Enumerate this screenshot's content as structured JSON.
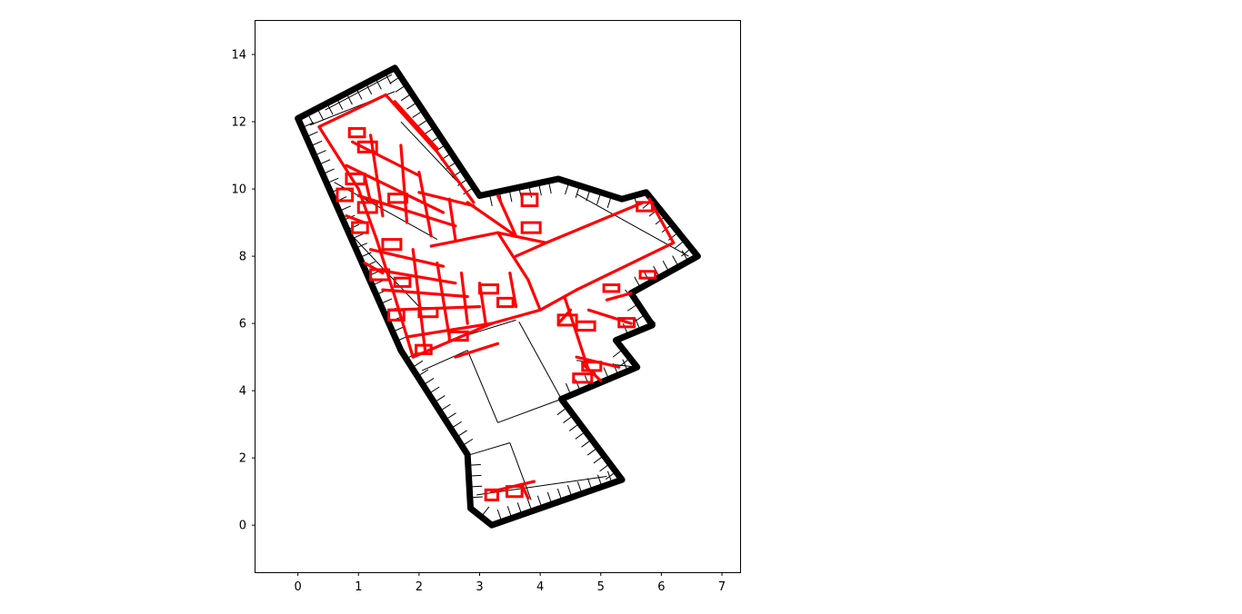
{
  "chart_data": {
    "type": "line",
    "title": "",
    "xlabel": "",
    "ylabel": "",
    "xlim": [
      -0.7,
      7.3
    ],
    "ylim": [
      -1.4,
      15.0
    ],
    "x_ticks": [
      0,
      1,
      2,
      3,
      4,
      5,
      6,
      7
    ],
    "y_ticks": [
      0,
      2,
      4,
      6,
      8,
      10,
      12,
      14
    ],
    "grid": false,
    "colors": {
      "boundary": "#000000",
      "parcels": "#000000",
      "roads": "#ff0000"
    },
    "series": [
      {
        "role": "boundary",
        "points": [
          [
            0,
            12.1
          ],
          [
            1.6,
            13.6
          ],
          [
            3,
            9.8
          ],
          [
            4.3,
            10.3
          ],
          [
            5.35,
            9.7
          ],
          [
            5.75,
            9.9
          ],
          [
            6.6,
            8
          ],
          [
            5.5,
            6.9
          ],
          [
            5.85,
            5.95
          ],
          [
            5.25,
            5.5
          ],
          [
            5.6,
            4.7
          ],
          [
            4.35,
            3.75
          ],
          [
            5.35,
            1.35
          ],
          [
            3.2,
            0
          ],
          [
            2.85,
            0.5
          ],
          [
            2.8,
            2.1
          ],
          [
            1.7,
            5.2
          ],
          [
            0,
            12.1
          ]
        ]
      },
      {
        "role": "parcel-lines",
        "segments": [
          [
            [
              2.05,
              4.6
            ],
            [
              2.8,
              5.2
            ]
          ],
          [
            [
              2.8,
              5.2
            ],
            [
              3.3,
              3.05
            ]
          ],
          [
            [
              3.3,
              3.05
            ],
            [
              4.35,
              3.75
            ]
          ],
          [
            [
              3.65,
              6.05
            ],
            [
              4.35,
              3.75
            ]
          ],
          [
            [
              2.85,
              2.1
            ],
            [
              3.5,
              2.45
            ]
          ],
          [
            [
              3.5,
              2.45
            ],
            [
              3.85,
              0.75
            ]
          ],
          [
            [
              2.95,
              0.9
            ],
            [
              5.1,
              1.45
            ]
          ],
          [
            [
              4.35,
              3.75
            ],
            [
              5.35,
              1.35
            ]
          ],
          [
            [
              0.45,
              12.35
            ],
            [
              1.55,
              13.4
            ]
          ],
          [
            [
              0.2,
              11.9
            ],
            [
              1.6,
              12.9
            ]
          ],
          [
            [
              1.7,
              12.0
            ],
            [
              2.8,
              9.9
            ]
          ],
          [
            [
              0.6,
              10.2
            ],
            [
              2.3,
              8.5
            ]
          ],
          [
            [
              0.9,
              8.6
            ],
            [
              2.0,
              6.5
            ]
          ],
          [
            [
              2.7,
              5.6
            ],
            [
              3.6,
              6.1
            ]
          ],
          [
            [
              4.6,
              9.85
            ],
            [
              6.45,
              8.0
            ]
          ],
          [
            [
              5.4,
              7.0
            ],
            [
              5.9,
              6.0
            ]
          ],
          [
            [
              4.6,
              4.9
            ],
            [
              5.6,
              4.7
            ]
          ]
        ]
      },
      {
        "role": "road-network",
        "segments": [
          [
            [
              0.35,
              11.85
            ],
            [
              1.45,
              12.8
            ]
          ],
          [
            [
              1.45,
              12.8
            ],
            [
              2.3,
              11.1
            ]
          ],
          [
            [
              2.3,
              11.1
            ],
            [
              2.9,
              9.6
            ]
          ],
          [
            [
              0.35,
              11.85
            ],
            [
              1.0,
              10.0
            ]
          ],
          [
            [
              1.0,
              10.0
            ],
            [
              1.3,
              8.5
            ]
          ],
          [
            [
              1.3,
              8.5
            ],
            [
              1.6,
              6.8
            ]
          ],
          [
            [
              1.6,
              6.8
            ],
            [
              1.9,
              5.0
            ]
          ],
          [
            [
              1.9,
              5.0
            ],
            [
              3.2,
              6.0
            ]
          ],
          [
            [
              3.2,
              6.0
            ],
            [
              4.0,
              6.4
            ]
          ],
          [
            [
              4.0,
              6.4
            ],
            [
              4.6,
              7.0
            ]
          ],
          [
            [
              4.6,
              7.0
            ],
            [
              6.2,
              8.4
            ]
          ],
          [
            [
              6.2,
              8.4
            ],
            [
              5.8,
              9.7
            ]
          ],
          [
            [
              4.1,
              8.4
            ],
            [
              5.7,
              9.6
            ]
          ],
          [
            [
              2.2,
              8.3
            ],
            [
              3.3,
              8.7
            ]
          ],
          [
            [
              3.3,
              8.7
            ],
            [
              4.1,
              8.4
            ]
          ],
          [
            [
              3.3,
              8.7
            ],
            [
              3.8,
              7.3
            ]
          ],
          [
            [
              3.8,
              7.3
            ],
            [
              4.0,
              6.4
            ]
          ],
          [
            [
              2.8,
              9.6
            ],
            [
              3.6,
              8.6
            ]
          ],
          [
            [
              0.9,
              11.4
            ],
            [
              2.0,
              10.4
            ]
          ],
          [
            [
              0.8,
              10.7
            ],
            [
              2.4,
              9.3
            ]
          ],
          [
            [
              1.0,
              9.8
            ],
            [
              2.6,
              8.9
            ]
          ],
          [
            [
              1.2,
              8.2
            ],
            [
              2.4,
              7.7
            ]
          ],
          [
            [
              1.3,
              7.6
            ],
            [
              2.6,
              7.2
            ]
          ],
          [
            [
              1.4,
              7.0
            ],
            [
              2.8,
              6.8
            ]
          ],
          [
            [
              1.5,
              6.4
            ],
            [
              3.0,
              6.5
            ]
          ],
          [
            [
              1.8,
              5.6
            ],
            [
              3.2,
              6.0
            ]
          ],
          [
            [
              1.2,
              11.6
            ],
            [
              1.4,
              9.2
            ]
          ],
          [
            [
              1.7,
              11.3
            ],
            [
              1.8,
              9.0
            ]
          ],
          [
            [
              2.0,
              10.5
            ],
            [
              2.2,
              8.6
            ]
          ],
          [
            [
              2.5,
              9.7
            ],
            [
              2.6,
              8.5
            ]
          ],
          [
            [
              1.9,
              8.2
            ],
            [
              2.1,
              5.2
            ]
          ],
          [
            [
              2.3,
              7.8
            ],
            [
              2.5,
              5.6
            ]
          ],
          [
            [
              2.7,
              7.5
            ],
            [
              2.8,
              6.0
            ]
          ],
          [
            [
              3.0,
              7.2
            ],
            [
              3.1,
              6.0
            ]
          ],
          [
            [
              3.5,
              7.5
            ],
            [
              3.6,
              6.5
            ]
          ],
          [
            [
              3.3,
              9.8
            ],
            [
              3.6,
              8.6
            ]
          ],
          [
            [
              3.6,
              8.0
            ],
            [
              4.1,
              8.4
            ]
          ],
          [
            [
              4.4,
              6.8
            ],
            [
              4.8,
              4.6
            ]
          ],
          [
            [
              4.8,
              6.4
            ],
            [
              5.5,
              6.0
            ]
          ],
          [
            [
              4.6,
              5.0
            ],
            [
              5.3,
              4.7
            ]
          ],
          [
            [
              4.7,
              4.8
            ],
            [
              5.0,
              4.3
            ]
          ],
          [
            [
              5.1,
              6.7
            ],
            [
              5.5,
              6.9
            ]
          ],
          [
            [
              4.3,
              6.0
            ],
            [
              4.5,
              6.4
            ]
          ],
          [
            [
              3.2,
              1.0
            ],
            [
              3.9,
              1.3
            ]
          ],
          [
            [
              3.7,
              1.2
            ],
            [
              3.8,
              0.8
            ]
          ],
          [
            [
              2.6,
              5.0
            ],
            [
              3.3,
              5.4
            ]
          ],
          [
            [
              2.0,
              9.9
            ],
            [
              2.9,
              9.5
            ]
          ],
          [
            [
              1.1,
              10.4
            ],
            [
              1.2,
              9.6
            ]
          ],
          [
            [
              0.8,
              9.2
            ],
            [
              1.1,
              9.0
            ]
          ],
          [
            [
              1.1,
              7.8
            ],
            [
              1.4,
              7.5
            ]
          ],
          [
            [
              1.6,
              12.6
            ],
            [
              2.3,
              11.2
            ]
          ]
        ]
      },
      {
        "role": "road-blocks",
        "rects": [
          [
            0.85,
            11.55,
            0.25,
            0.25
          ],
          [
            1.0,
            11.1,
            0.3,
            0.3
          ],
          [
            0.8,
            10.15,
            0.3,
            0.3
          ],
          [
            0.65,
            9.65,
            0.25,
            0.35
          ],
          [
            1.0,
            9.3,
            0.3,
            0.3
          ],
          [
            0.9,
            8.7,
            0.25,
            0.3
          ],
          [
            1.5,
            9.6,
            0.3,
            0.25
          ],
          [
            1.4,
            8.2,
            0.3,
            0.3
          ],
          [
            1.2,
            7.3,
            0.3,
            0.3
          ],
          [
            1.6,
            7.1,
            0.25,
            0.25
          ],
          [
            1.5,
            6.1,
            0.25,
            0.3
          ],
          [
            2.0,
            6.2,
            0.3,
            0.25
          ],
          [
            1.95,
            5.1,
            0.25,
            0.25
          ],
          [
            2.5,
            5.5,
            0.3,
            0.25
          ],
          [
            3.0,
            6.9,
            0.3,
            0.25
          ],
          [
            3.3,
            6.5,
            0.25,
            0.25
          ],
          [
            3.7,
            9.5,
            0.25,
            0.35
          ],
          [
            3.7,
            8.7,
            0.3,
            0.3
          ],
          [
            5.6,
            9.35,
            0.25,
            0.25
          ],
          [
            5.65,
            7.35,
            0.25,
            0.2
          ],
          [
            5.05,
            6.95,
            0.25,
            0.2
          ],
          [
            4.3,
            5.95,
            0.3,
            0.3
          ],
          [
            4.6,
            5.8,
            0.3,
            0.25
          ],
          [
            4.7,
            4.6,
            0.3,
            0.25
          ],
          [
            4.55,
            4.25,
            0.3,
            0.25
          ],
          [
            5.3,
            5.9,
            0.25,
            0.25
          ],
          [
            3.1,
            0.75,
            0.2,
            0.3
          ],
          [
            3.45,
            0.85,
            0.25,
            0.3
          ]
        ]
      }
    ]
  }
}
